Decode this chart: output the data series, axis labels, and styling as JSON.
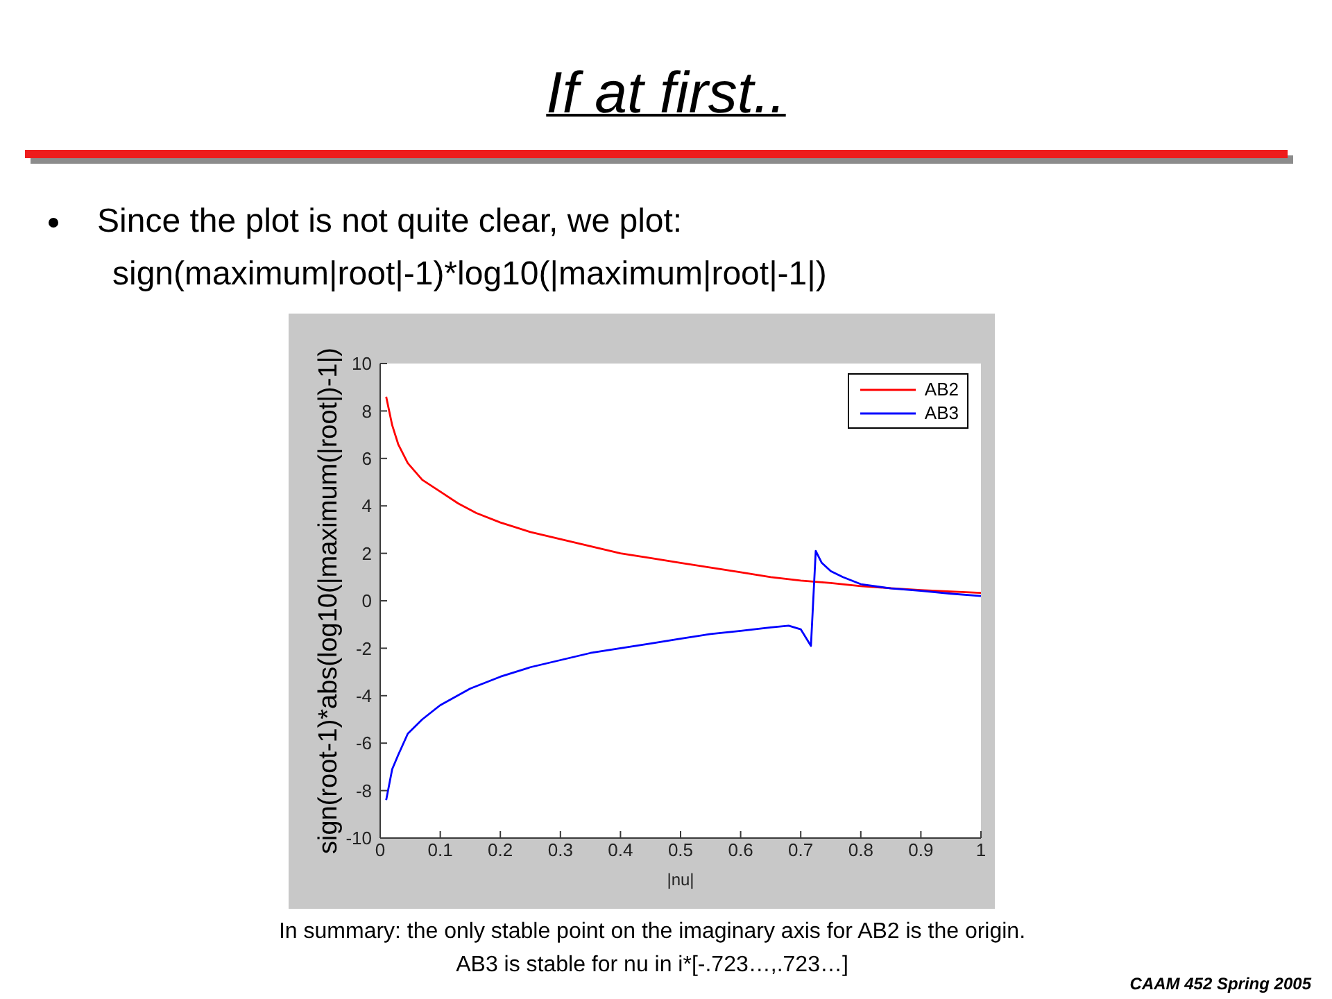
{
  "chart_data": {
    "type": "line",
    "title": "If at first..",
    "subtitle": "Since the plot is not quite clear, we plot:",
    "xlabel": "|nu|",
    "ylabel": "sign(root-1)*abs(log10(|maximum(|root|)-1|)",
    "annotations": [
      "sign(maximum|root|-1)*log10(|maximum|root|-1|)",
      "In summary: the only stable point on the imaginary axis for AB2 is the origin.",
      "AB3 is stable for nu in i*[-.723…,.723…]",
      "CAAM 452 Spring 2005"
    ],
    "series": [
      {
        "name": "AB2",
        "color": "#ff0000",
        "x": [
          0.01,
          0.02,
          0.03,
          0.046,
          0.07,
          0.1,
          0.13,
          0.16,
          0.2,
          0.25,
          0.3,
          0.35,
          0.4,
          0.45,
          0.5,
          0.55,
          0.6,
          0.65,
          0.7,
          0.75,
          0.8,
          0.85,
          0.9,
          0.95,
          1.0
        ],
        "values": [
          8.6,
          7.4,
          6.6,
          5.8,
          5.1,
          4.6,
          4.1,
          3.7,
          3.3,
          2.9,
          2.6,
          2.3,
          2.0,
          1.8,
          1.6,
          1.4,
          1.2,
          1.0,
          0.85,
          0.75,
          0.62,
          0.53,
          0.45,
          0.39,
          0.33
        ]
      },
      {
        "name": "AB3",
        "color": "#0000ff",
        "x": [
          0.01,
          0.02,
          0.03,
          0.046,
          0.07,
          0.1,
          0.15,
          0.2,
          0.25,
          0.3,
          0.35,
          0.4,
          0.45,
          0.5,
          0.55,
          0.6,
          0.65,
          0.68,
          0.7,
          0.717,
          0.725,
          0.735,
          0.75,
          0.77,
          0.8,
          0.85,
          0.9,
          0.95,
          1.0
        ],
        "values": [
          -8.4,
          -7.1,
          -6.5,
          -5.6,
          -5.0,
          -4.4,
          -3.7,
          -3.2,
          -2.8,
          -2.5,
          -2.2,
          -2.0,
          -1.8,
          -1.6,
          -1.4,
          -1.27,
          -1.12,
          -1.05,
          -1.2,
          -1.9,
          2.1,
          1.6,
          1.25,
          1.0,
          0.7,
          0.52,
          0.42,
          0.3,
          0.2
        ]
      }
    ],
    "xlim": [
      0,
      1
    ],
    "xticks": [
      0,
      0.1,
      0.2,
      0.3,
      0.4,
      0.5,
      0.6,
      0.7,
      0.8,
      0.9,
      1
    ],
    "ylim": [
      -10,
      10
    ],
    "yticks": [
      -10,
      -8,
      -6,
      -4,
      -2,
      0,
      2,
      4,
      6,
      8,
      10
    ],
    "legend": "top right"
  }
}
